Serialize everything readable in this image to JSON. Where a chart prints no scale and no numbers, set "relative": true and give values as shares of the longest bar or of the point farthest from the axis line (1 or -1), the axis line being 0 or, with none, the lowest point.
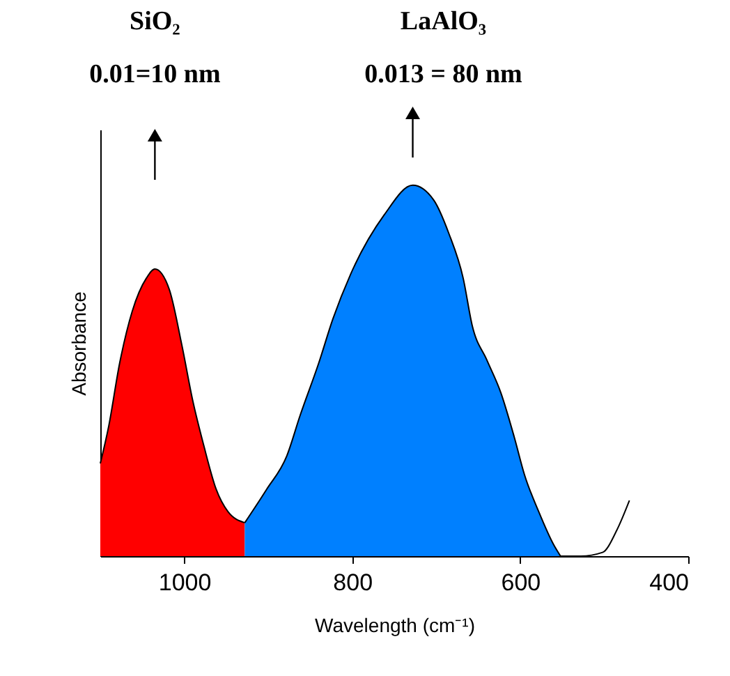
{
  "chart_data": {
    "type": "area",
    "xlabel": "Wavelength (cm⁻¹)",
    "ylabel": "Absorbance",
    "relative": true,
    "xlim": [
      1100,
      400
    ],
    "xticks": [
      1000,
      800,
      600,
      400
    ],
    "grid": false,
    "annotations": [
      "SiO₂",
      "0.01=10 nm",
      "LaAlO₃",
      "0.013 = 80 nm"
    ],
    "series": [
      {
        "color": "#ff0000",
        "x": [
          1100,
          1090,
          1077,
          1062,
          1045,
          1035,
          1018,
          1003,
          990,
          977,
          962,
          948,
          928
        ],
        "values": [
          0.25,
          0.35,
          0.52,
          0.66,
          0.75,
          0.774,
          0.72,
          0.57,
          0.42,
          0.3,
          0.18,
          0.12,
          0.09
        ]
      },
      {
        "color": "#0080ff",
        "x": [
          928,
          902,
          878,
          862,
          840,
          823,
          802,
          762,
          728,
          703,
          685,
          668,
          657,
          640,
          623,
          607,
          595,
          578,
          560,
          552
        ],
        "values": [
          0.09,
          0.18,
          0.27,
          0.38,
          0.52,
          0.64,
          0.76,
          0.92,
          1.0,
          0.96,
          0.87,
          0.75,
          0.62,
          0.53,
          0.44,
          0.32,
          0.22,
          0.12,
          0.03,
          0
        ]
      },
      {
        "type": "line",
        "color": "#000000",
        "x": [
          552,
          528,
          502,
          485,
          470
        ],
        "values": [
          0,
          0,
          0.01,
          0.07,
          0.15
        ]
      }
    ]
  }
}
